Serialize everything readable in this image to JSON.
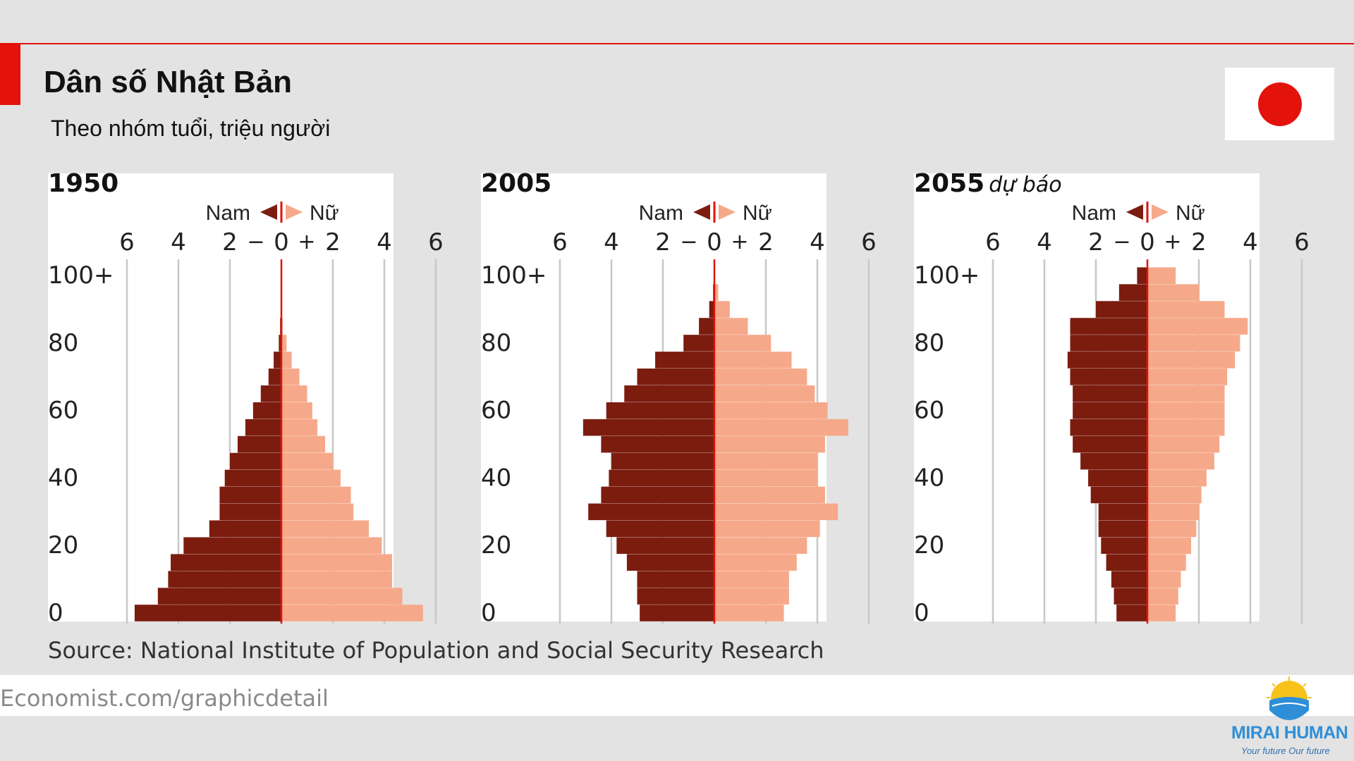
{
  "header": {
    "title": "Dân số Nhật Bản",
    "subtitle": "Theo nhóm tuổi, triệu người"
  },
  "source": "Source: National Institute of Population and Social Security Research",
  "footer": {
    "url": "Economist.com/graphicdetail"
  },
  "logo": {
    "name": "MIRAI HUMAN",
    "tagline": "Your future Our future"
  },
  "legend": {
    "male": "Nam",
    "female": "Nữ",
    "minus": "−",
    "plus": "+"
  },
  "colors": {
    "accent": "#e3120b",
    "male": "#7b1c0f",
    "female": "#f6a98a",
    "grid": "#c7c7c7"
  },
  "chart_data": [
    {
      "type": "bar",
      "title": "1950",
      "subtitle": "",
      "xticks": [
        "6",
        "4",
        "2",
        "0",
        "2",
        "4",
        "6"
      ],
      "yticks": [
        "100+",
        "80",
        "60",
        "40",
        "20",
        "0"
      ],
      "xlim": [
        -6,
        6
      ],
      "age_groups": [
        "0",
        "5",
        "10",
        "15",
        "20",
        "25",
        "30",
        "35",
        "40",
        "45",
        "50",
        "55",
        "60",
        "65",
        "70",
        "75",
        "80",
        "85",
        "90",
        "95",
        "100+"
      ],
      "series": [
        {
          "name": "Nam",
          "values": [
            5.7,
            4.8,
            4.4,
            4.3,
            3.8,
            2.8,
            2.4,
            2.4,
            2.2,
            2.0,
            1.7,
            1.4,
            1.1,
            0.8,
            0.5,
            0.3,
            0.1,
            0.05,
            0,
            0,
            0
          ]
        },
        {
          "name": "Nữ",
          "values": [
            5.5,
            4.7,
            4.3,
            4.3,
            3.9,
            3.4,
            2.8,
            2.7,
            2.3,
            2.0,
            1.7,
            1.4,
            1.2,
            1.0,
            0.7,
            0.4,
            0.2,
            0.05,
            0,
            0,
            0
          ]
        }
      ]
    },
    {
      "type": "bar",
      "title": "2005",
      "subtitle": "",
      "xticks": [
        "6",
        "4",
        "2",
        "0",
        "2",
        "4",
        "6"
      ],
      "yticks": [
        "100+",
        "80",
        "60",
        "40",
        "20",
        "0"
      ],
      "xlim": [
        -6,
        6
      ],
      "age_groups": [
        "0",
        "5",
        "10",
        "15",
        "20",
        "25",
        "30",
        "35",
        "40",
        "45",
        "50",
        "55",
        "60",
        "65",
        "70",
        "75",
        "80",
        "85",
        "90",
        "95",
        "100+"
      ],
      "series": [
        {
          "name": "Nam",
          "values": [
            2.9,
            3.0,
            3.0,
            3.4,
            3.8,
            4.2,
            4.9,
            4.4,
            4.1,
            4.0,
            4.4,
            5.1,
            4.2,
            3.5,
            3.0,
            2.3,
            1.2,
            0.6,
            0.2,
            0.05,
            0
          ]
        },
        {
          "name": "Nữ",
          "values": [
            2.7,
            2.9,
            2.9,
            3.2,
            3.6,
            4.1,
            4.8,
            4.3,
            4.0,
            4.0,
            4.3,
            5.2,
            4.4,
            3.9,
            3.6,
            3.0,
            2.2,
            1.3,
            0.6,
            0.15,
            0
          ]
        }
      ]
    },
    {
      "type": "bar",
      "title": "2055",
      "subtitle": "dự báo",
      "xticks": [
        "6",
        "4",
        "2",
        "0",
        "2",
        "4",
        "6"
      ],
      "yticks": [
        "100+",
        "80",
        "60",
        "40",
        "20",
        "0"
      ],
      "xlim": [
        -6,
        6
      ],
      "age_groups": [
        "0",
        "5",
        "10",
        "15",
        "20",
        "25",
        "30",
        "35",
        "40",
        "45",
        "50",
        "55",
        "60",
        "65",
        "70",
        "75",
        "80",
        "85",
        "90",
        "95",
        "100+"
      ],
      "series": [
        {
          "name": "Nam",
          "values": [
            1.2,
            1.3,
            1.4,
            1.6,
            1.8,
            1.9,
            1.9,
            2.2,
            2.3,
            2.6,
            2.9,
            3.0,
            2.9,
            2.9,
            3.0,
            3.1,
            3.0,
            3.0,
            2.0,
            1.1,
            0.4
          ]
        },
        {
          "name": "Nữ",
          "values": [
            1.1,
            1.2,
            1.3,
            1.5,
            1.7,
            1.9,
            2.0,
            2.1,
            2.3,
            2.6,
            2.8,
            3.0,
            3.0,
            3.0,
            3.1,
            3.4,
            3.6,
            3.9,
            3.0,
            2.0,
            1.1
          ]
        }
      ]
    }
  ]
}
